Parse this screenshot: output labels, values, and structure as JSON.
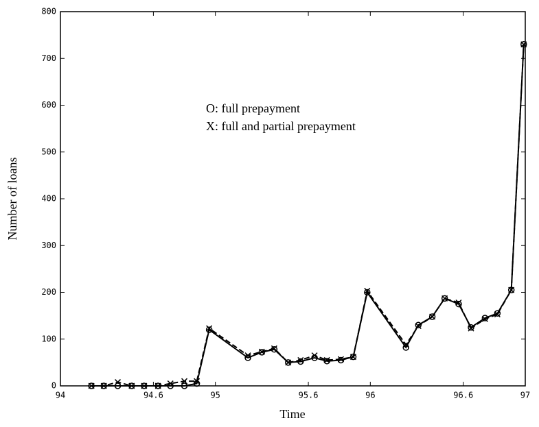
{
  "chart_data": {
    "type": "line",
    "x_label": "Time",
    "y_label": "Number of loans",
    "annotations": [
      "O: full prepayment",
      "X: full and partial prepayment"
    ],
    "x": [
      94.2,
      94.28,
      94.37,
      94.46,
      94.54,
      94.63,
      94.71,
      94.8,
      94.88,
      94.96,
      95.21,
      95.3,
      95.38,
      95.47,
      95.55,
      95.64,
      95.72,
      95.81,
      95.89,
      95.98,
      96.23,
      96.31,
      96.4,
      96.48,
      96.57,
      96.65,
      96.74,
      96.82,
      96.91,
      96.99
    ],
    "series": [
      {
        "name": "O",
        "color": "#000000",
        "marker": "circle",
        "dashed": false,
        "values": [
          0,
          0,
          0,
          0,
          0,
          0,
          0,
          0,
          5,
          120,
          60,
          72,
          78,
          50,
          52,
          60,
          53,
          55,
          62,
          200,
          82,
          130,
          148,
          187,
          175,
          125,
          145,
          155,
          205,
          730
        ]
      },
      {
        "name": "X",
        "color": "#000000",
        "marker": "cross",
        "dashed": true,
        "values": [
          0,
          0,
          8,
          0,
          0,
          0,
          5,
          10,
          10,
          123,
          65,
          73,
          80,
          50,
          55,
          65,
          55,
          57,
          62,
          203,
          88,
          128,
          148,
          187,
          178,
          123,
          143,
          153,
          205,
          730
        ]
      }
    ],
    "xlim": [
      94,
      97
    ],
    "xticks": [
      94,
      94.6,
      95,
      95.6,
      96,
      96.6,
      97
    ],
    "ylim": [
      0,
      800
    ],
    "yticks": [
      0,
      100,
      200,
      300,
      400,
      500,
      600,
      700,
      800
    ],
    "grid": false
  }
}
